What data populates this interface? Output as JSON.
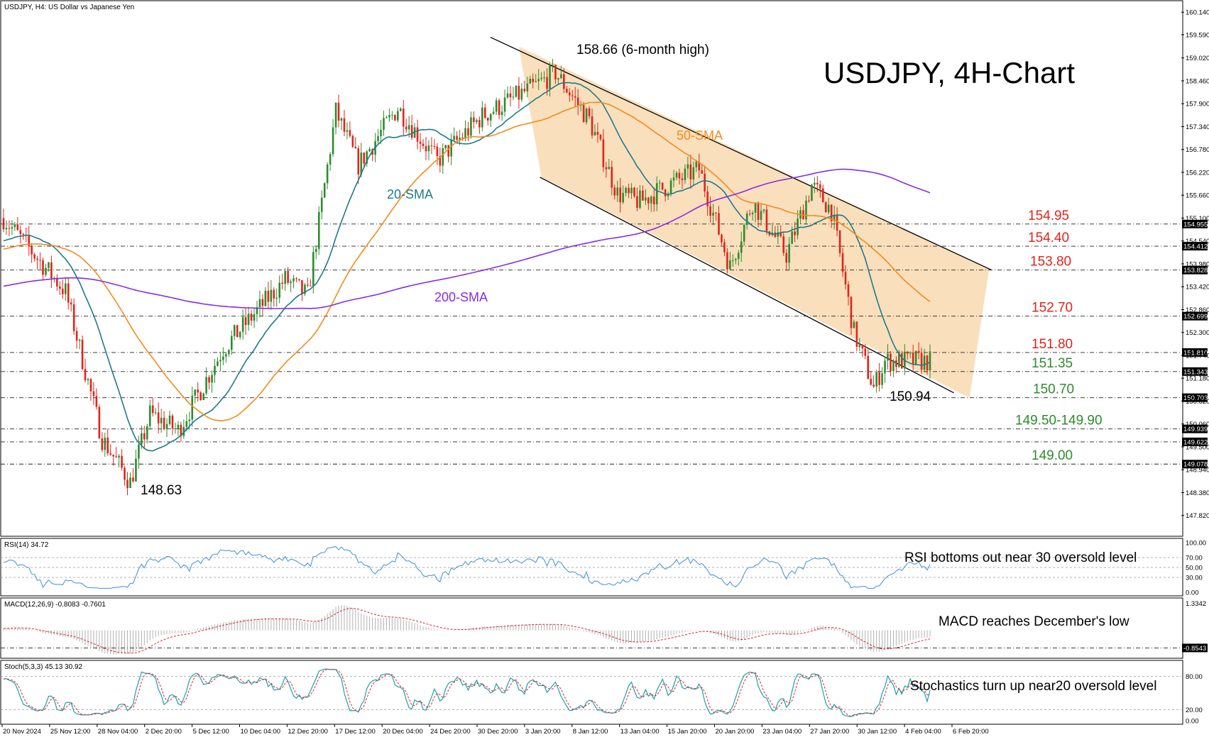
{
  "chart_data": {
    "type": "candlestick",
    "header": "USDJPY, H4:  US Dollar vs Japanese Yen",
    "title": "USDJPY, 4H-Chart",
    "price_ticks": [
      "160.140",
      "159.590",
      "159.020",
      "158.460",
      "157.900",
      "157.340",
      "156.780",
      "156.220",
      "155.660",
      "155.100",
      "154.540",
      "153.980",
      "153.420",
      "152.860",
      "152.300",
      "151.740",
      "151.180",
      "150.620",
      "150.060",
      "149.500",
      "148.940",
      "148.380",
      "147.820"
    ],
    "ylim": [
      147.45,
      160.3
    ],
    "x_ticks": [
      "20 Nov 2024",
      "25 Nov 12:00",
      "28 Nov 04:00",
      "2 Dec 20:00",
      "5 Dec 12:00",
      "10 Dec 04:00",
      "12 Dec 20:00",
      "17 Dec 12:00",
      "20 Dec 04:00",
      "24 Dec 20:00",
      "30 Dec 20:00",
      "3 Jan 20:00",
      "8 Jan 12:00",
      "13 Jan 04:00",
      "15 Jan 20:00",
      "20 Jan 20:00",
      "23 Jan 04:00",
      "27 Jan 20:00",
      "30 Jan 12:00",
      "4 Feb 04:00",
      "6 Feb 20:00"
    ],
    "n_bars": 330,
    "key_points": [
      {
        "bar": 0,
        "price": 155.1
      },
      {
        "bar": 22,
        "price": 153.3
      },
      {
        "bar": 35,
        "price": 149.7
      },
      {
        "bar": 45,
        "price": 148.63
      },
      {
        "bar": 52,
        "price": 150.3
      },
      {
        "bar": 62,
        "price": 149.9
      },
      {
        "bar": 78,
        "price": 151.9
      },
      {
        "bar": 100,
        "price": 153.6
      },
      {
        "bar": 108,
        "price": 153.2
      },
      {
        "bar": 118,
        "price": 157.7
      },
      {
        "bar": 126,
        "price": 156.4
      },
      {
        "bar": 140,
        "price": 157.8
      },
      {
        "bar": 154,
        "price": 156.5
      },
      {
        "bar": 170,
        "price": 157.6
      },
      {
        "bar": 188,
        "price": 158.3
      },
      {
        "bar": 196,
        "price": 158.66
      },
      {
        "bar": 208,
        "price": 157.5
      },
      {
        "bar": 218,
        "price": 155.7
      },
      {
        "bar": 226,
        "price": 155.5
      },
      {
        "bar": 236,
        "price": 155.9
      },
      {
        "bar": 247,
        "price": 156.3
      },
      {
        "bar": 258,
        "price": 153.9
      },
      {
        "bar": 266,
        "price": 155.5
      },
      {
        "bar": 278,
        "price": 154.2
      },
      {
        "bar": 287,
        "price": 155.9
      },
      {
        "bar": 294,
        "price": 155.3
      },
      {
        "bar": 302,
        "price": 152.3
      },
      {
        "bar": 309,
        "price": 150.94
      },
      {
        "bar": 313,
        "price": 151.6
      }
    ],
    "smas": [
      {
        "name": "20-SMA",
        "period": 20,
        "color": "#1f7a8c"
      },
      {
        "name": "50-SMA",
        "period": 50,
        "color": "#f28c1b"
      },
      {
        "name": "200-SMA",
        "period": 200,
        "color": "#8a2be2"
      }
    ],
    "levels": [
      {
        "label": "154.95",
        "value": 154.955,
        "axis": "154.955",
        "color": "#e0241b"
      },
      {
        "label": "154.40",
        "value": 154.412,
        "axis": "154.412",
        "color": "#e0241b"
      },
      {
        "label": "153.80",
        "value": 153.828,
        "axis": "153.828",
        "color": "#e0241b"
      },
      {
        "label": "152.70",
        "value": 152.699,
        "axis": "152.699",
        "color": "#e0241b"
      },
      {
        "label": "151.80",
        "value": 151.81,
        "axis": "151.810",
        "color": "#e0241b"
      },
      {
        "label": "151.35",
        "value": 151.343,
        "axis": "151.343",
        "color": "#2e8b2e"
      },
      {
        "label": "150.70",
        "value": 150.703,
        "axis": "150.703",
        "color": "#2e8b2e"
      },
      {
        "label": "149.50-149.90",
        "value": 149.939,
        "axis": "149.939",
        "color": "#2e8b2e"
      },
      {
        "label": "",
        "value": 149.622,
        "axis": "149.622",
        "color": "#2e8b2e"
      },
      {
        "label": "149.00",
        "value": 149.078,
        "axis": "149.078",
        "color": "#2e8b2e"
      }
    ],
    "annotations": [
      {
        "text": "158.66 (6-month high)",
        "bar": 196,
        "price": 158.66
      },
      {
        "text": "148.63",
        "bar": 45,
        "price": 148.63
      },
      {
        "text": "150.94",
        "bar": 309,
        "price": 150.94
      }
    ],
    "channel": {
      "upper": [
        {
          "bar": 183,
          "price": 159.3
        },
        {
          "bar": 350,
          "price": 153.85
        }
      ],
      "lower": [
        {
          "bar": 191,
          "price": 156.1
        },
        {
          "bar": 343,
          "price": 150.7
        }
      ]
    },
    "rsi": {
      "header": "RSI(14) 34.72",
      "ticks": [
        "100.00",
        "70.00",
        "50.00",
        "30.00",
        "0.00"
      ],
      "ylim": [
        0,
        100
      ],
      "note": "RSI bottoms out near 30 oversold level"
    },
    "macd": {
      "header": "MACD(12,26,9) -0.8083 -0.7601",
      "ticks": [
        "1.3342",
        "-0.8543"
      ],
      "note": "MACD reaches December's low"
    },
    "stoch": {
      "header": "Stoch(5,3,3) 45.13 30.92",
      "ticks": [
        "80.00",
        "20.00",
        "0.00"
      ],
      "ylim": [
        0,
        100
      ],
      "note": "Stochastics turn up near20 oversold level"
    }
  },
  "colors": {
    "bull": "#2e8b2e",
    "bear": "#e0241b",
    "channel_fill": "#f8d9b0",
    "rsi_line": "#3b8fd6",
    "macd_hist": "#b0b0b0",
    "macd_signal": "#d9262b",
    "stoch_main": "#1aa0b0",
    "stoch_signal": "#d9262b"
  }
}
